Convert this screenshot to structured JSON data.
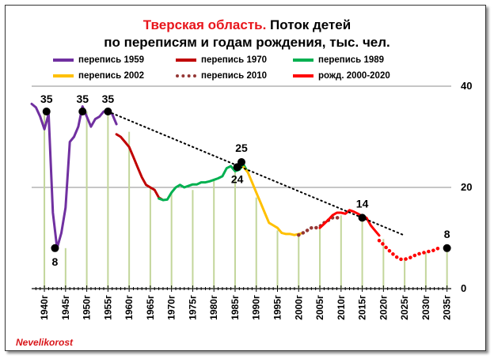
{
  "title": {
    "part1": "Тверская  область.",
    "part2": " Поток детей",
    "line2": "по переписям и годам рождения, тыс. чел."
  },
  "credit": "Nevelikorost",
  "colors": {
    "census1959": "#7030a0",
    "census1970": "#c00000",
    "census1989": "#00b050",
    "census2002": "#ffc000",
    "census2010": "#953735",
    "births": "#ff0000",
    "vertical_lines": "#c3d69b",
    "trend": "#000000"
  },
  "chart_data": {
    "type": "line",
    "title": "Тверская  область. Поток детей по переписям и годам рождения, тыс. чел.",
    "xlabel": "",
    "ylabel": "",
    "xlim": [
      1937,
      2036
    ],
    "ylim": [
      0,
      40
    ],
    "yticks": [
      0,
      20,
      40
    ],
    "xticks": [
      "1940г",
      "1945г",
      "1950г",
      "1955г",
      "1960г",
      "1965г",
      "1970г",
      "1975г",
      "1980г",
      "1985г",
      "1990г",
      "1995г",
      "2000г",
      "2005г",
      "2010г",
      "2015г",
      "2020г",
      "2025г",
      "2030г",
      "2035г"
    ],
    "grid": "horizontal",
    "legend_position": "top",
    "series": [
      {
        "name": "перепись 1959",
        "color": "#7030a0",
        "style": "solid",
        "points": [
          [
            1937,
            36.5
          ],
          [
            1938,
            35.8
          ],
          [
            1939,
            34
          ],
          [
            1940,
            31.5
          ],
          [
            1941,
            34.5
          ],
          [
            1942,
            15
          ],
          [
            1943,
            8
          ],
          [
            1944,
            11
          ],
          [
            1945,
            16
          ],
          [
            1946,
            29
          ],
          [
            1947,
            30
          ],
          [
            1948,
            32
          ],
          [
            1949,
            36
          ],
          [
            1950,
            34
          ],
          [
            1951,
            32
          ],
          [
            1952,
            33.5
          ],
          [
            1953,
            34
          ],
          [
            1954,
            35
          ],
          [
            1955,
            35
          ],
          [
            1956,
            34.5
          ],
          [
            1957,
            32.5
          ]
        ]
      },
      {
        "name": "перепись 1970",
        "color": "#c00000",
        "style": "solid",
        "points": [
          [
            1957,
            30.5
          ],
          [
            1958,
            30
          ],
          [
            1959,
            29
          ],
          [
            1960,
            28
          ],
          [
            1961,
            26
          ],
          [
            1962,
            24
          ],
          [
            1963,
            22
          ],
          [
            1964,
            20.5
          ],
          [
            1965,
            20
          ],
          [
            1966,
            19.5
          ],
          [
            1967,
            18
          ],
          [
            1968,
            17.5
          ]
        ]
      },
      {
        "name": "перепись 1989",
        "color": "#00b050",
        "style": "solid",
        "points": [
          [
            1967,
            17.8
          ],
          [
            1968,
            17.5
          ],
          [
            1969,
            17.6
          ],
          [
            1970,
            19
          ],
          [
            1971,
            20
          ],
          [
            1972,
            20.5
          ],
          [
            1973,
            20
          ],
          [
            1974,
            20.3
          ],
          [
            1975,
            20.6
          ],
          [
            1976,
            20.6
          ],
          [
            1977,
            21
          ],
          [
            1978,
            21
          ],
          [
            1979,
            21.2
          ],
          [
            1980,
            21.5
          ],
          [
            1981,
            21.8
          ],
          [
            1982,
            22.2
          ],
          [
            1983,
            23.8
          ],
          [
            1984,
            24.2
          ],
          [
            1985,
            23.2
          ],
          [
            1986,
            23.5
          ],
          [
            1987,
            24.5
          ],
          [
            1988,
            23
          ]
        ]
      },
      {
        "name": "перепись 2002",
        "color": "#ffc000",
        "style": "solid",
        "points": [
          [
            1987,
            24
          ],
          [
            1988,
            23
          ],
          [
            1989,
            21
          ],
          [
            1990,
            19
          ],
          [
            1991,
            17
          ],
          [
            1992,
            15
          ],
          [
            1993,
            13
          ],
          [
            1994,
            12.5
          ],
          [
            1995,
            12
          ],
          [
            1996,
            11
          ],
          [
            1997,
            10.8
          ],
          [
            1998,
            10.8
          ],
          [
            1999,
            10.6
          ],
          [
            2000,
            10.8
          ],
          [
            2001,
            11
          ]
        ]
      },
      {
        "name": "перепись 2010",
        "color": "#953735",
        "style": "dotted",
        "points": [
          [
            2000,
            10.6
          ],
          [
            2001,
            11
          ],
          [
            2002,
            11.5
          ],
          [
            2003,
            12
          ],
          [
            2004,
            12
          ],
          [
            2005,
            12.3
          ],
          [
            2006,
            13
          ],
          [
            2007,
            13.5
          ],
          [
            2008,
            14
          ],
          [
            2009,
            14
          ],
          [
            2010,
            14
          ]
        ]
      },
      {
        "name": "рожд. 2000-2020",
        "color": "#ff0000",
        "style": "solid",
        "points": [
          [
            2005,
            12
          ],
          [
            2006,
            12.8
          ],
          [
            2007,
            13.6
          ],
          [
            2008,
            14.5
          ],
          [
            2009,
            15
          ],
          [
            2010,
            15
          ],
          [
            2011,
            14.8
          ],
          [
            2012,
            15.5
          ],
          [
            2013,
            15.2
          ],
          [
            2014,
            14.8
          ],
          [
            2015,
            14.3
          ],
          [
            2016,
            14
          ],
          [
            2017,
            12.5
          ],
          [
            2018,
            11.5
          ],
          [
            2019,
            10.5
          ]
        ]
      },
      {
        "name": "forecast",
        "color": "#ff0000",
        "style": "dotted",
        "points": [
          [
            2019,
            9.5
          ],
          [
            2020,
            8.7
          ],
          [
            2021,
            7.8
          ],
          [
            2022,
            7
          ],
          [
            2023,
            6.3
          ],
          [
            2024,
            5.8
          ],
          [
            2025,
            5.8
          ],
          [
            2026,
            6
          ],
          [
            2027,
            6.4
          ],
          [
            2028,
            6.8
          ],
          [
            2029,
            7
          ],
          [
            2030,
            7.2
          ],
          [
            2031,
            7.4
          ],
          [
            2032,
            7.6
          ],
          [
            2033,
            8
          ]
        ]
      },
      {
        "name": "trend",
        "color": "#000000",
        "style": "dotted",
        "points": [
          [
            1955,
            35
          ],
          [
            2025,
            10.5
          ]
        ]
      }
    ],
    "vertical_lines": [
      [
        1940,
        35
      ],
      [
        1945,
        8
      ],
      [
        1950,
        35
      ],
      [
        1955,
        35
      ],
      [
        1960,
        31
      ],
      [
        1965,
        20
      ],
      [
        1970,
        19
      ],
      [
        1975,
        19.5
      ],
      [
        1980,
        21.5
      ],
      [
        1985,
        23.7
      ],
      [
        1990,
        18
      ],
      [
        1995,
        11.5
      ],
      [
        2000,
        11
      ],
      [
        2005,
        12
      ],
      [
        2010,
        14.5
      ],
      [
        2015,
        14
      ],
      [
        2020,
        9.8
      ],
      [
        2025,
        6
      ],
      [
        2030,
        7.2
      ],
      [
        2035,
        8
      ]
    ],
    "markers": [
      {
        "x": 1940.5,
        "y": 35,
        "label": "35"
      },
      {
        "x": 1942.5,
        "y": 8,
        "label": "8"
      },
      {
        "x": 1949,
        "y": 35,
        "label": "35"
      },
      {
        "x": 1955,
        "y": 35,
        "label": "35"
      },
      {
        "x": 1985.5,
        "y": 24,
        "label": "24"
      },
      {
        "x": 1986.5,
        "y": 25,
        "label": "25"
      },
      {
        "x": 2015,
        "y": 14,
        "label": "14"
      },
      {
        "x": 2035,
        "y": 8,
        "label": "8"
      }
    ]
  }
}
